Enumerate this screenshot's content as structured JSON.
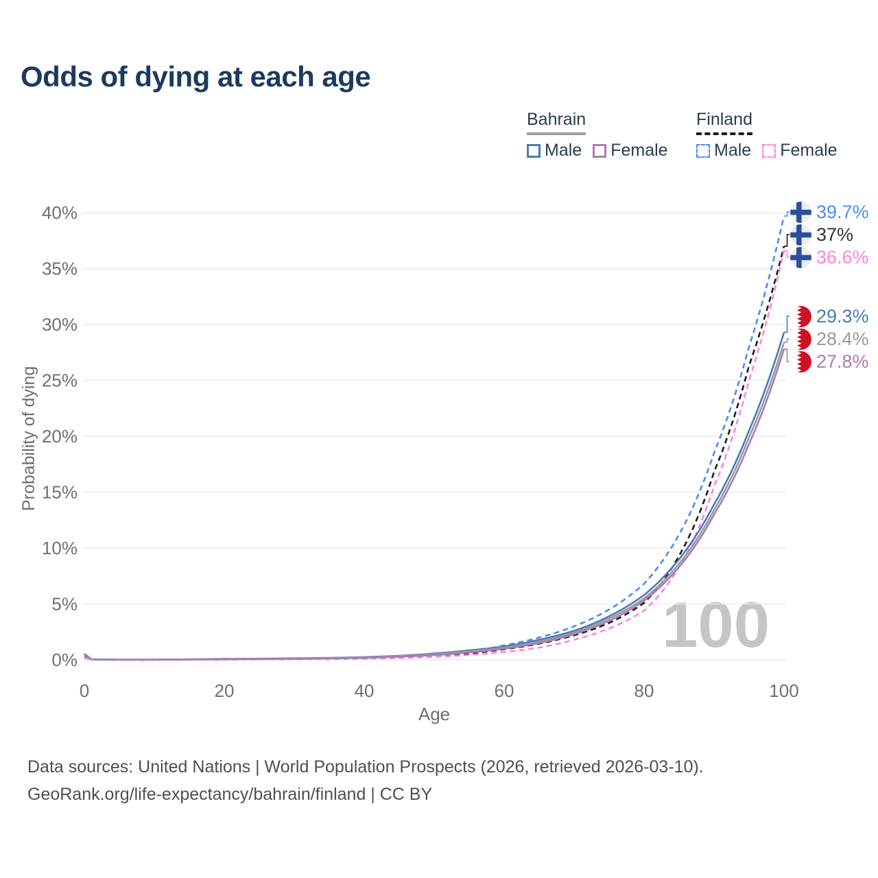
{
  "title": "Odds of dying at each age",
  "legend": {
    "groups": [
      {
        "name": "Bahrain",
        "line_style": "solid",
        "underline_color": "#a0a0a0",
        "items": [
          {
            "label": "Male",
            "color": "#4a7ab8"
          },
          {
            "label": "Female",
            "color": "#b07ab0"
          }
        ]
      },
      {
        "name": "Finland",
        "line_style": "dashed",
        "underline_color": "#1c1c1c",
        "items": [
          {
            "label": "Male",
            "color": "#4b8af8"
          },
          {
            "label": "Female",
            "color": "#ff80e6"
          }
        ]
      }
    ]
  },
  "end_labels": [
    {
      "value": "39.7%",
      "color": "#4b8af8",
      "flag": "finland",
      "series": "Finland Male"
    },
    {
      "value": "37%",
      "color": "#333333",
      "flag": "finland",
      "series": "Finland Total"
    },
    {
      "value": "36.6%",
      "color": "#ff80e6",
      "flag": "finland",
      "series": "Finland Female"
    },
    {
      "value": "29.3%",
      "color": "#4a7ab8",
      "flag": "bahrain",
      "series": "Bahrain Male"
    },
    {
      "value": "28.4%",
      "color": "#9a9a9a",
      "flag": "bahrain",
      "series": "Bahrain Total"
    },
    {
      "value": "27.8%",
      "color": "#a87cb0",
      "flag": "bahrain",
      "series": "Bahrain Female"
    }
  ],
  "watermark": "100",
  "source_line1": "Data sources: United Nations | World Population Prospects (2026, retrieved 2026-03-10).",
  "source_line2": "GeoRank.org/life-expectancy/bahrain/finland | CC BY",
  "chart_data": {
    "type": "line",
    "title": "Odds of dying at each age",
    "xlabel": "Age",
    "ylabel": "Probability of dying",
    "xlim": [
      0,
      100
    ],
    "ylim": [
      0,
      40
    ],
    "grid": true,
    "legend_position": "top-right",
    "x_ticks": [
      {
        "v": 0,
        "label": "0"
      },
      {
        "v": 20,
        "label": "20"
      },
      {
        "v": 40,
        "label": "40"
      },
      {
        "v": 60,
        "label": "60"
      },
      {
        "v": 80,
        "label": "80"
      },
      {
        "v": 100,
        "label": "100"
      }
    ],
    "y_ticks": [
      {
        "v": 0,
        "label": "0%"
      },
      {
        "v": 5,
        "label": "5%"
      },
      {
        "v": 10,
        "label": "10%"
      },
      {
        "v": 15,
        "label": "15%"
      },
      {
        "v": 20,
        "label": "20%"
      },
      {
        "v": 25,
        "label": "25%"
      },
      {
        "v": 30,
        "label": "30%"
      },
      {
        "v": 35,
        "label": "35%"
      },
      {
        "v": 40,
        "label": "40%"
      }
    ],
    "x": [
      0,
      1,
      5,
      10,
      15,
      20,
      25,
      30,
      35,
      40,
      45,
      50,
      55,
      60,
      65,
      70,
      75,
      80,
      85,
      90,
      95,
      100
    ],
    "series": [
      {
        "name": "Finland Male",
        "country": "Finland",
        "sex": "Male",
        "color": "#4b8af8",
        "dash": true,
        "end_value_pct": 39.7,
        "values": [
          0.25,
          0.03,
          0.01,
          0.01,
          0.03,
          0.06,
          0.08,
          0.1,
          0.13,
          0.18,
          0.28,
          0.46,
          0.75,
          1.3,
          2.0,
          3.0,
          4.5,
          6.8,
          11.2,
          18.5,
          28.0,
          39.7
        ]
      },
      {
        "name": "Finland Total",
        "country": "Finland",
        "sex": "Both",
        "color": "#1a1a1a",
        "dash": true,
        "end_value_pct": 37.0,
        "values": [
          0.22,
          0.02,
          0.01,
          0.01,
          0.02,
          0.04,
          0.06,
          0.08,
          0.1,
          0.14,
          0.22,
          0.36,
          0.58,
          0.95,
          1.45,
          2.2,
          3.3,
          5.1,
          9.3,
          16.8,
          26.3,
          37.0
        ]
      },
      {
        "name": "Finland Female",
        "country": "Finland",
        "sex": "Female",
        "color": "#ff80e6",
        "dash": true,
        "end_value_pct": 36.6,
        "values": [
          0.19,
          0.02,
          0.01,
          0.01,
          0.015,
          0.025,
          0.04,
          0.05,
          0.07,
          0.1,
          0.16,
          0.27,
          0.44,
          0.7,
          1.1,
          1.8,
          2.8,
          4.4,
          8.3,
          15.5,
          25.0,
          36.6
        ]
      },
      {
        "name": "Bahrain Male",
        "country": "Bahrain",
        "sex": "Male",
        "color": "#4a7ab8",
        "dash": false,
        "end_value_pct": 29.3,
        "values": [
          0.55,
          0.05,
          0.02,
          0.02,
          0.05,
          0.09,
          0.11,
          0.14,
          0.18,
          0.25,
          0.37,
          0.57,
          0.85,
          1.2,
          1.8,
          2.6,
          3.9,
          5.8,
          9.0,
          13.9,
          20.5,
          29.3
        ]
      },
      {
        "name": "Bahrain Total",
        "country": "Bahrain",
        "sex": "Both",
        "color": "#9a9a9a",
        "dash": false,
        "end_value_pct": 28.4,
        "values": [
          0.5,
          0.04,
          0.02,
          0.02,
          0.04,
          0.07,
          0.09,
          0.12,
          0.16,
          0.22,
          0.33,
          0.5,
          0.76,
          1.1,
          1.65,
          2.45,
          3.7,
          5.5,
          8.6,
          13.4,
          19.9,
          28.4
        ]
      },
      {
        "name": "Bahrain Female",
        "country": "Bahrain",
        "sex": "Female",
        "color": "#a87cb0",
        "dash": false,
        "end_value_pct": 27.8,
        "values": [
          0.45,
          0.04,
          0.02,
          0.02,
          0.03,
          0.05,
          0.07,
          0.1,
          0.13,
          0.18,
          0.28,
          0.43,
          0.66,
          1.0,
          1.5,
          2.3,
          3.5,
          5.3,
          8.3,
          13.0,
          19.3,
          27.8
        ]
      }
    ]
  }
}
